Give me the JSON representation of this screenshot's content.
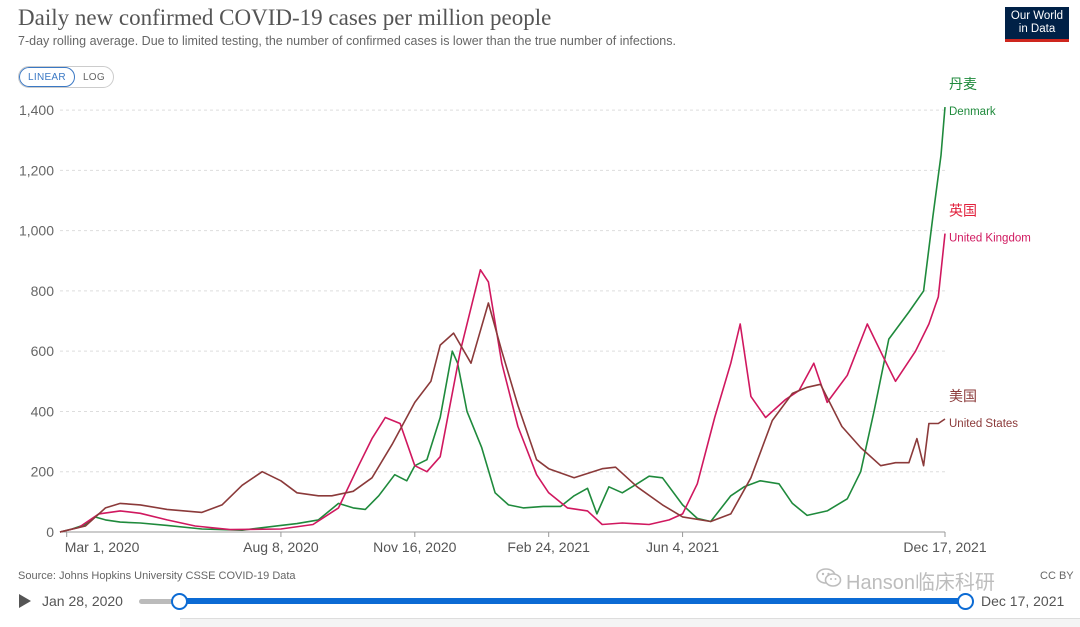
{
  "header": {
    "title": "Daily new confirmed COVID-19 cases per million people",
    "subtitle": "7-day rolling average. Due to limited testing, the number of confirmed cases is lower than the true number of infections.",
    "logo_line1": "Our World",
    "logo_line2": "in Data"
  },
  "controls": {
    "linear_label": "LINEAR",
    "log_label": "LOG",
    "active_scale": "linear"
  },
  "footer": {
    "source": "Source: Johns Hopkins University CSSE COVID-19 Data",
    "license": "CC BY",
    "watermark": "Hanson临床科研"
  },
  "timeline": {
    "start_label": "Jan 28, 2020",
    "end_label": "Dec 17, 2021"
  },
  "chart_data": {
    "type": "line",
    "ylim": [
      0,
      1450
    ],
    "y_ticks": [
      0,
      200,
      400,
      600,
      800,
      1000,
      1200,
      1400
    ],
    "y_tick_labels": [
      "0",
      "200",
      "400",
      "600",
      "800",
      "1,000",
      "1,200",
      "1,400"
    ],
    "x_range": [
      "2020-02-25",
      "2021-12-17"
    ],
    "x_ticks": [
      {
        "date": "2020-03-01",
        "label": "Mar 1, 2020"
      },
      {
        "date": "2020-08-08",
        "label": "Aug 8, 2020"
      },
      {
        "date": "2020-11-16",
        "label": "Nov 16, 2020"
      },
      {
        "date": "2021-02-24",
        "label": "Feb 24, 2021"
      },
      {
        "date": "2021-06-04",
        "label": "Jun 4, 2021"
      },
      {
        "date": "2021-12-17",
        "label": "Dec 17, 2021"
      }
    ],
    "grid": "horizontal",
    "series": [
      {
        "name": "Denmark",
        "annotation": "丹麦",
        "color": "#1f8a3c",
        "annotation_color": "#1f8a3c",
        "points": [
          [
            "2020-02-25",
            0
          ],
          [
            "2020-03-05",
            10
          ],
          [
            "2020-03-15",
            25
          ],
          [
            "2020-03-22",
            50
          ],
          [
            "2020-03-30",
            40
          ],
          [
            "2020-04-10",
            33
          ],
          [
            "2020-04-25",
            30
          ],
          [
            "2020-05-15",
            22
          ],
          [
            "2020-06-10",
            10
          ],
          [
            "2020-07-10",
            6
          ],
          [
            "2020-08-08",
            22
          ],
          [
            "2020-08-20",
            28
          ],
          [
            "2020-09-05",
            40
          ],
          [
            "2020-09-20",
            95
          ],
          [
            "2020-10-01",
            80
          ],
          [
            "2020-10-10",
            75
          ],
          [
            "2020-10-20",
            120
          ],
          [
            "2020-11-01",
            190
          ],
          [
            "2020-11-10",
            170
          ],
          [
            "2020-11-16",
            220
          ],
          [
            "2020-11-25",
            240
          ],
          [
            "2020-12-05",
            380
          ],
          [
            "2020-12-14",
            600
          ],
          [
            "2020-12-18",
            560
          ],
          [
            "2020-12-25",
            400
          ],
          [
            "2021-01-05",
            280
          ],
          [
            "2021-01-15",
            130
          ],
          [
            "2021-01-25",
            90
          ],
          [
            "2021-02-05",
            80
          ],
          [
            "2021-02-20",
            85
          ],
          [
            "2021-03-05",
            85
          ],
          [
            "2021-03-15",
            120
          ],
          [
            "2021-03-25",
            145
          ],
          [
            "2021-04-01",
            60
          ],
          [
            "2021-04-10",
            150
          ],
          [
            "2021-04-20",
            130
          ],
          [
            "2021-05-01",
            160
          ],
          [
            "2021-05-10",
            185
          ],
          [
            "2021-05-20",
            180
          ],
          [
            "2021-06-04",
            90
          ],
          [
            "2021-06-15",
            45
          ],
          [
            "2021-06-25",
            35
          ],
          [
            "2021-07-10",
            120
          ],
          [
            "2021-07-20",
            150
          ],
          [
            "2021-08-01",
            170
          ],
          [
            "2021-08-15",
            160
          ],
          [
            "2021-08-25",
            95
          ],
          [
            "2021-09-05",
            55
          ],
          [
            "2021-09-20",
            70
          ],
          [
            "2021-10-05",
            110
          ],
          [
            "2021-10-15",
            200
          ],
          [
            "2021-10-25",
            400
          ],
          [
            "2021-11-05",
            640
          ],
          [
            "2021-11-20",
            730
          ],
          [
            "2021-12-01",
            800
          ],
          [
            "2021-12-08",
            1050
          ],
          [
            "2021-12-14",
            1250
          ],
          [
            "2021-12-17",
            1410
          ]
        ]
      },
      {
        "name": "United Kingdom",
        "annotation": "英国",
        "color": "#d0185f",
        "annotation_color": "#e11f3b",
        "points": [
          [
            "2020-02-25",
            0
          ],
          [
            "2020-03-10",
            15
          ],
          [
            "2020-03-25",
            60
          ],
          [
            "2020-04-10",
            70
          ],
          [
            "2020-04-25",
            62
          ],
          [
            "2020-05-15",
            40
          ],
          [
            "2020-06-05",
            20
          ],
          [
            "2020-07-01",
            8
          ],
          [
            "2020-08-08",
            10
          ],
          [
            "2020-09-01",
            25
          ],
          [
            "2020-09-20",
            80
          ],
          [
            "2020-10-05",
            220
          ],
          [
            "2020-10-15",
            310
          ],
          [
            "2020-10-25",
            380
          ],
          [
            "2020-11-05",
            360
          ],
          [
            "2020-11-16",
            220
          ],
          [
            "2020-11-25",
            200
          ],
          [
            "2020-12-05",
            250
          ],
          [
            "2020-12-20",
            600
          ],
          [
            "2021-01-04",
            870
          ],
          [
            "2021-01-10",
            830
          ],
          [
            "2021-01-20",
            560
          ],
          [
            "2021-02-01",
            350
          ],
          [
            "2021-02-15",
            190
          ],
          [
            "2021-02-24",
            130
          ],
          [
            "2021-03-10",
            80
          ],
          [
            "2021-03-25",
            70
          ],
          [
            "2021-04-05",
            25
          ],
          [
            "2021-04-20",
            30
          ],
          [
            "2021-05-10",
            25
          ],
          [
            "2021-05-25",
            40
          ],
          [
            "2021-06-04",
            60
          ],
          [
            "2021-06-15",
            160
          ],
          [
            "2021-06-28",
            380
          ],
          [
            "2021-07-10",
            560
          ],
          [
            "2021-07-17",
            690
          ],
          [
            "2021-07-25",
            450
          ],
          [
            "2021-08-05",
            380
          ],
          [
            "2021-08-20",
            440
          ],
          [
            "2021-08-30",
            470
          ],
          [
            "2021-09-10",
            560
          ],
          [
            "2021-09-20",
            430
          ],
          [
            "2021-10-05",
            520
          ],
          [
            "2021-10-20",
            690
          ],
          [
            "2021-11-01",
            580
          ],
          [
            "2021-11-10",
            500
          ],
          [
            "2021-11-25",
            600
          ],
          [
            "2021-12-05",
            690
          ],
          [
            "2021-12-12",
            780
          ],
          [
            "2021-12-17",
            990
          ]
        ]
      },
      {
        "name": "United States",
        "annotation": "美国",
        "color": "#8b3a3a",
        "annotation_color": "#8b3a3a",
        "points": [
          [
            "2020-02-25",
            0
          ],
          [
            "2020-03-15",
            20
          ],
          [
            "2020-03-30",
            80
          ],
          [
            "2020-04-10",
            95
          ],
          [
            "2020-04-25",
            90
          ],
          [
            "2020-05-15",
            75
          ],
          [
            "2020-06-10",
            65
          ],
          [
            "2020-06-25",
            90
          ],
          [
            "2020-07-10",
            155
          ],
          [
            "2020-07-25",
            200
          ],
          [
            "2020-08-08",
            170
          ],
          [
            "2020-08-20",
            130
          ],
          [
            "2020-09-05",
            120
          ],
          [
            "2020-09-15",
            120
          ],
          [
            "2020-10-01",
            135
          ],
          [
            "2020-10-15",
            180
          ],
          [
            "2020-10-30",
            290
          ],
          [
            "2020-11-16",
            430
          ],
          [
            "2020-11-28",
            500
          ],
          [
            "2020-12-05",
            620
          ],
          [
            "2020-12-15",
            660
          ],
          [
            "2020-12-28",
            560
          ],
          [
            "2021-01-10",
            760
          ],
          [
            "2021-01-20",
            600
          ],
          [
            "2021-02-01",
            420
          ],
          [
            "2021-02-15",
            240
          ],
          [
            "2021-02-24",
            210
          ],
          [
            "2021-03-15",
            180
          ],
          [
            "2021-04-05",
            210
          ],
          [
            "2021-04-15",
            215
          ],
          [
            "2021-05-01",
            150
          ],
          [
            "2021-05-20",
            90
          ],
          [
            "2021-06-04",
            50
          ],
          [
            "2021-06-25",
            35
          ],
          [
            "2021-07-10",
            60
          ],
          [
            "2021-07-25",
            180
          ],
          [
            "2021-08-10",
            370
          ],
          [
            "2021-08-25",
            460
          ],
          [
            "2021-09-05",
            480
          ],
          [
            "2021-09-15",
            490
          ],
          [
            "2021-10-01",
            350
          ],
          [
            "2021-10-15",
            280
          ],
          [
            "2021-10-30",
            220
          ],
          [
            "2021-11-10",
            230
          ],
          [
            "2021-11-20",
            230
          ],
          [
            "2021-11-26",
            310
          ],
          [
            "2021-12-01",
            220
          ],
          [
            "2021-12-05",
            360
          ],
          [
            "2021-12-12",
            360
          ],
          [
            "2021-12-17",
            375
          ]
        ]
      }
    ]
  }
}
